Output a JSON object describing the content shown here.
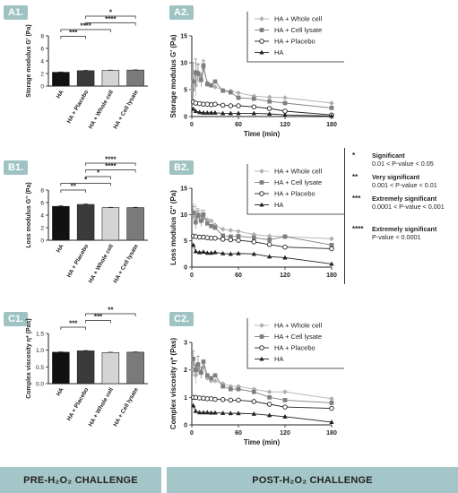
{
  "panels": {
    "A1": "A1.",
    "A2": "A2.",
    "B1": "B1.",
    "B2": "B2.",
    "C1": "C1.",
    "C2": "C2."
  },
  "footer": {
    "left": "PRE-H₂O₂ CHALLENGE",
    "right": "POST-H₂O₂ CHALLENGE"
  },
  "significance_legend": [
    {
      "stars": "*",
      "label": "Significant",
      "range": "0.01 < P-value < 0.05"
    },
    {
      "stars": "**",
      "label": "Very significant",
      "range": "0.001 < P-value < 0.01"
    },
    {
      "stars": "***",
      "label": "Extremely significant",
      "range": "0.0001 < P-value < 0.001"
    },
    {
      "stars": "****",
      "label": "Extremely significant",
      "range": "P-value < 0.0001"
    }
  ],
  "colors": {
    "bar_HA": "#111111",
    "bar_placebo": "#3a3a3a",
    "bar_whole": "#d4d4d4",
    "bar_lysate": "#7a7a7a",
    "line_whole": "#b0b0b0",
    "line_lysate": "#7f7f7f",
    "line_placebo": "#222222",
    "line_HA": "#222222",
    "accent": "#a5c6c8"
  },
  "chart_data": [
    {
      "id": "A1",
      "type": "bar",
      "categories": [
        "HA",
        "HA + Placebo",
        "HA + Whole cell",
        "HA + Cell lysate"
      ],
      "values": [
        2.2,
        2.45,
        2.5,
        2.55
      ],
      "errors": [
        0.05,
        0.05,
        0.04,
        0.04
      ],
      "ylabel": "Storage modulus G' (Pa)",
      "ylim": [
        0,
        8
      ],
      "yticks": [
        0,
        2,
        4,
        6,
        8
      ],
      "brackets": [
        {
          "from": 0,
          "to": 1,
          "stars": "***"
        },
        {
          "from": 0,
          "to": 2,
          "stars": "****"
        },
        {
          "from": 1,
          "to": 3,
          "stars": "****"
        },
        {
          "from": 1,
          "to": 3,
          "stars": "*"
        }
      ]
    },
    {
      "id": "A2",
      "type": "line",
      "ylabel": "Storage modulus G' (Pa)",
      "xlabel": "Time (min)",
      "xlim": [
        0,
        180
      ],
      "xticks": [
        0,
        60,
        120,
        180
      ],
      "ylim": [
        0,
        15
      ],
      "yticks": [
        0,
        5,
        10,
        15
      ],
      "legend": "top-right",
      "series": [
        {
          "name": "HA + Whole cell",
          "marker": "diamond",
          "x": [
            2,
            5,
            8,
            12,
            15,
            20,
            25,
            30,
            40,
            50,
            60,
            80,
            100,
            120,
            180
          ],
          "y": [
            5.0,
            5.8,
            8.2,
            7.5,
            9.0,
            6.3,
            5.8,
            5.5,
            4.9,
            4.7,
            4.4,
            3.8,
            3.6,
            3.5,
            2.5
          ],
          "err": [
            1.5,
            2.0,
            1.5,
            0,
            1.3,
            0,
            0,
            0,
            0,
            0,
            0,
            0,
            0,
            0,
            0
          ]
        },
        {
          "name": "HA + Cell lysate",
          "marker": "square",
          "x": [
            2,
            5,
            8,
            12,
            15,
            20,
            25,
            30,
            40,
            50,
            60,
            80,
            100,
            120,
            180
          ],
          "y": [
            6.5,
            8.2,
            8.0,
            6.8,
            9.5,
            6.0,
            5.8,
            6.5,
            4.8,
            4.5,
            3.5,
            3.3,
            2.8,
            2.5,
            1.6
          ],
          "err": [
            3.5,
            2.5,
            1.8,
            1.2,
            1.0,
            0,
            0,
            0,
            0,
            0,
            0,
            0,
            0,
            0,
            0
          ]
        },
        {
          "name": "HA + Placebo",
          "marker": "circle",
          "x": [
            2,
            5,
            10,
            15,
            20,
            25,
            30,
            40,
            50,
            60,
            80,
            100,
            120,
            180
          ],
          "y": [
            2.7,
            2.5,
            2.4,
            2.3,
            2.3,
            2.2,
            2.3,
            2.1,
            2.0,
            2.0,
            1.8,
            1.5,
            1.0,
            0.3
          ],
          "err": []
        },
        {
          "name": "HA",
          "marker": "triangle",
          "x": [
            2,
            5,
            10,
            15,
            20,
            25,
            30,
            40,
            50,
            60,
            80,
            100,
            120,
            180
          ],
          "y": [
            1.4,
            1.0,
            0.8,
            0.7,
            0.7,
            0.7,
            0.7,
            0.6,
            0.6,
            0.6,
            0.6,
            0.5,
            0.3,
            0.1
          ],
          "err": []
        }
      ]
    },
    {
      "id": "B1",
      "type": "bar",
      "categories": [
        "HA",
        "HA + Placebo",
        "HA + Whole cell",
        "HA + Cell lysate"
      ],
      "values": [
        5.4,
        5.7,
        5.2,
        5.2
      ],
      "errors": [
        0.08,
        0.07,
        0.05,
        0.05
      ],
      "ylabel": "Loss modulus G'' (Pa)",
      "ylim": [
        0,
        8
      ],
      "yticks": [
        0,
        2,
        4,
        6,
        8
      ],
      "brackets": [
        {
          "from": 0,
          "to": 1,
          "stars": "**"
        },
        {
          "from": 0,
          "to": 2,
          "stars": "*"
        },
        {
          "from": 1,
          "to": 2,
          "stars": "*"
        },
        {
          "from": 1,
          "to": 3,
          "stars": "****"
        },
        {
          "from": 1,
          "to": 3,
          "stars": "****"
        }
      ]
    },
    {
      "id": "B2",
      "type": "line",
      "ylabel": "Loss modulus G'' (Pa)",
      "xlabel": "",
      "xlim": [
        0,
        180
      ],
      "xticks": [
        0,
        60,
        120,
        180
      ],
      "ylim": [
        0,
        15
      ],
      "yticks": [
        0,
        5,
        10,
        15
      ],
      "legend": "top-right",
      "series": [
        {
          "name": "HA + Whole cell",
          "marker": "diamond",
          "x": [
            2,
            5,
            8,
            12,
            15,
            20,
            25,
            30,
            40,
            50,
            60,
            80,
            100,
            120,
            180
          ],
          "y": [
            10.5,
            10.3,
            10.2,
            9.8,
            9.3,
            9.0,
            8.8,
            8.0,
            7.2,
            7.0,
            6.8,
            6.2,
            5.9,
            5.8,
            5.4
          ],
          "err": [
            1.5,
            1.3,
            1.0,
            1.0,
            0.8,
            0,
            0,
            0,
            0,
            0,
            0,
            0,
            0,
            0,
            0
          ]
        },
        {
          "name": "HA + Cell lysate",
          "marker": "square",
          "x": [
            2,
            5,
            8,
            12,
            15,
            20,
            25,
            30,
            40,
            50,
            60,
            80,
            100,
            120,
            180
          ],
          "y": [
            10.3,
            8.5,
            9.8,
            8.8,
            10.0,
            8.3,
            7.8,
            7.5,
            6.0,
            5.8,
            5.9,
            5.6,
            5.2,
            5.8,
            4.2
          ],
          "err": [
            1.2,
            1.2,
            1.0,
            1.0,
            0.8,
            0,
            0,
            0,
            0,
            0,
            0,
            0,
            0,
            0,
            0
          ]
        },
        {
          "name": "HA + Placebo",
          "marker": "circle",
          "x": [
            2,
            5,
            10,
            15,
            20,
            25,
            30,
            40,
            50,
            60,
            80,
            100,
            120,
            180
          ],
          "y": [
            5.9,
            5.8,
            5.7,
            5.7,
            5.6,
            5.5,
            5.5,
            5.3,
            5.2,
            5.1,
            4.8,
            4.3,
            3.8,
            3.5
          ],
          "err": []
        },
        {
          "name": "HA",
          "marker": "triangle",
          "x": [
            2,
            5,
            10,
            15,
            20,
            25,
            30,
            40,
            50,
            60,
            80,
            100,
            120,
            180
          ],
          "y": [
            4.2,
            3.0,
            2.8,
            2.9,
            2.7,
            2.7,
            2.8,
            2.6,
            2.5,
            2.6,
            2.5,
            2.0,
            1.8,
            0.6
          ],
          "err": []
        }
      ]
    },
    {
      "id": "C1",
      "type": "bar",
      "categories": [
        "HA",
        "HA + Placebo",
        "HA + Whole cell",
        "HA + Cell lysate"
      ],
      "values": [
        0.94,
        0.98,
        0.93,
        0.94
      ],
      "errors": [
        0.01,
        0.01,
        0.01,
        0.01
      ],
      "ylabel": "Complex viscosity η* (Pas)",
      "ylim": [
        0,
        1.5
      ],
      "yticks": [
        0,
        0.5,
        1.0,
        1.5
      ],
      "ytick_labels": [
        "0.0",
        "0.5",
        "1.0",
        "1.5"
      ],
      "brackets": [
        {
          "from": 0,
          "to": 1,
          "stars": "***"
        },
        {
          "from": 1,
          "to": 2,
          "stars": "***"
        },
        {
          "from": 1,
          "to": 3,
          "stars": "**"
        }
      ]
    },
    {
      "id": "C2",
      "type": "line",
      "ylabel": "Complex viscosity η* (Pas)",
      "xlabel": "Time (min)",
      "xlim": [
        0,
        180
      ],
      "xticks": [
        0,
        60,
        120,
        180
      ],
      "ylim": [
        0,
        3
      ],
      "yticks": [
        0,
        1,
        2,
        3
      ],
      "legend": "top-right",
      "series": [
        {
          "name": "HA + Whole cell",
          "marker": "diamond",
          "x": [
            2,
            5,
            8,
            12,
            15,
            20,
            25,
            30,
            40,
            50,
            60,
            80,
            100,
            120,
            180
          ],
          "y": [
            2.0,
            1.8,
            2.0,
            1.9,
            2.1,
            1.7,
            1.6,
            1.6,
            1.5,
            1.4,
            1.4,
            1.3,
            1.2,
            1.2,
            0.95
          ],
          "err": [
            0.2,
            0.3,
            0.2,
            0.2,
            0,
            0,
            0,
            0,
            0,
            0,
            0,
            0,
            0,
            0,
            0
          ]
        },
        {
          "name": "HA + Cell lysate",
          "marker": "square",
          "x": [
            2,
            5,
            8,
            12,
            15,
            20,
            25,
            30,
            40,
            50,
            60,
            80,
            100,
            120,
            180
          ],
          "y": [
            2.4,
            2.0,
            2.2,
            1.9,
            2.3,
            1.8,
            1.7,
            1.8,
            1.4,
            1.3,
            1.3,
            1.2,
            1.0,
            0.9,
            0.8
          ],
          "err": [
            0.3,
            0.2,
            0.3,
            0.2,
            0,
            0,
            0,
            0,
            0,
            0,
            0,
            0,
            0,
            0,
            0
          ]
        },
        {
          "name": "HA + Placebo",
          "marker": "circle",
          "x": [
            2,
            5,
            10,
            15,
            20,
            25,
            30,
            40,
            50,
            60,
            80,
            100,
            120,
            180
          ],
          "y": [
            1.0,
            1.0,
            0.98,
            0.97,
            0.95,
            0.95,
            0.93,
            0.92,
            0.9,
            0.9,
            0.85,
            0.75,
            0.65,
            0.6
          ],
          "err": []
        },
        {
          "name": "HA",
          "marker": "triangle",
          "x": [
            2,
            5,
            10,
            15,
            20,
            25,
            30,
            40,
            50,
            60,
            80,
            100,
            120,
            180
          ],
          "y": [
            0.7,
            0.5,
            0.45,
            0.45,
            0.45,
            0.44,
            0.44,
            0.43,
            0.42,
            0.42,
            0.4,
            0.35,
            0.3,
            0.1
          ],
          "err": []
        }
      ]
    }
  ]
}
